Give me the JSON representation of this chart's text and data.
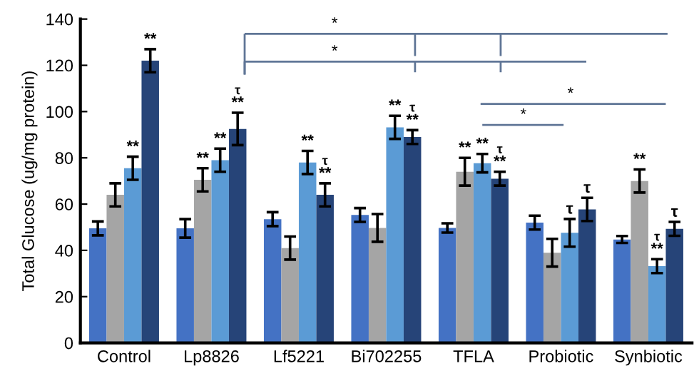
{
  "chart_data": {
    "type": "bar",
    "ylabel": "Total Glucose (ug/mg protein)",
    "categories": [
      "Control",
      "Lp8826",
      "Lf5221",
      "Bi702255",
      "TFLA",
      "Probiotic",
      "Synbiotic"
    ],
    "series": [
      {
        "color": "#4472c4",
        "values": [
          49.5,
          49.5,
          53.5,
          55.3,
          49.7,
          52,
          44.7
        ],
        "errors": [
          3,
          4,
          3,
          3,
          2,
          3,
          1.5
        ]
      },
      {
        "color": "#a5a5a5",
        "values": [
          64,
          70.5,
          41,
          49.7,
          74,
          39,
          70
        ],
        "errors": [
          5,
          5,
          5,
          6,
          6,
          6,
          5
        ]
      },
      {
        "color": "#5b9bd5",
        "values": [
          75.5,
          79,
          78,
          93.2,
          77.7,
          47.6,
          33.2
        ],
        "errors": [
          5,
          5,
          5,
          5,
          4,
          6,
          3
        ]
      },
      {
        "color": "#264478",
        "values": [
          122,
          92.5,
          64,
          89,
          71,
          57.7,
          49.3
        ],
        "errors": [
          5,
          7,
          5,
          3,
          3,
          5,
          3
        ]
      }
    ],
    "ylim": [
      0,
      140
    ],
    "yticks": [
      0,
      20,
      40,
      60,
      80,
      100,
      120,
      140
    ],
    "grid": false,
    "legend": false,
    "annotations": [
      "*",
      "*",
      "*",
      "*",
      "**",
      "**",
      "**",
      "**",
      "**",
      "τ",
      "**",
      "**",
      "τ",
      "**",
      "**",
      "τ",
      "**",
      "**",
      "**",
      "τ",
      "τ",
      "τ",
      "**",
      "**",
      "τ",
      "τ"
    ]
  }
}
